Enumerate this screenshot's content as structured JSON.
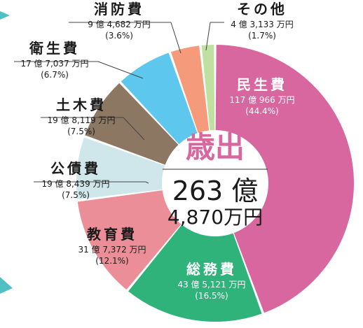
{
  "chart_data": {
    "type": "pie",
    "title": "歳出",
    "total_line1": "263 億",
    "total_line2": "4,870万円",
    "slices": [
      {
        "name": "民生費",
        "amount": "117 億 966 万円",
        "pct_label": "(44.4%)",
        "value": 44.4,
        "color": "#d9679f"
      },
      {
        "name": "総務費",
        "amount": "43 億 5,121 万円",
        "pct_label": "(16.5%)",
        "value": 16.5,
        "color": "#2fb37a"
      },
      {
        "name": "教育費",
        "amount": "31 億 7,372 万円",
        "pct_label": "(12.1%)",
        "value": 12.1,
        "color": "#ec8e98"
      },
      {
        "name": "公債費",
        "amount": "19 億 8,439 万円",
        "pct_label": "(7.5%)",
        "value": 7.5,
        "color": "#cfe7ea"
      },
      {
        "name": "土木費",
        "amount": "19 億 8,119 万円",
        "pct_label": "(7.5%)",
        "value": 7.5,
        "color": "#8b7762"
      },
      {
        "name": "衛生費",
        "amount": "17 億 7,037 万円",
        "pct_label": "(6.7%)",
        "value": 6.7,
        "color": "#5ec7ee"
      },
      {
        "name": "消防費",
        "amount": "9 億 4,682 万円",
        "pct_label": "(3.6%)",
        "value": 3.6,
        "color": "#f59b7c"
      },
      {
        "name": "その他",
        "amount": "4 億 3,133 万円",
        "pct_label": "(1.7%)",
        "value": 1.7,
        "color": "#bfe0a0"
      }
    ]
  },
  "colors": {
    "title": "#d9679f",
    "label_dark": "#1a1a1a",
    "label_light": "#ffffff",
    "leader": "#444444",
    "accent_teal": "#4fc1c3"
  }
}
